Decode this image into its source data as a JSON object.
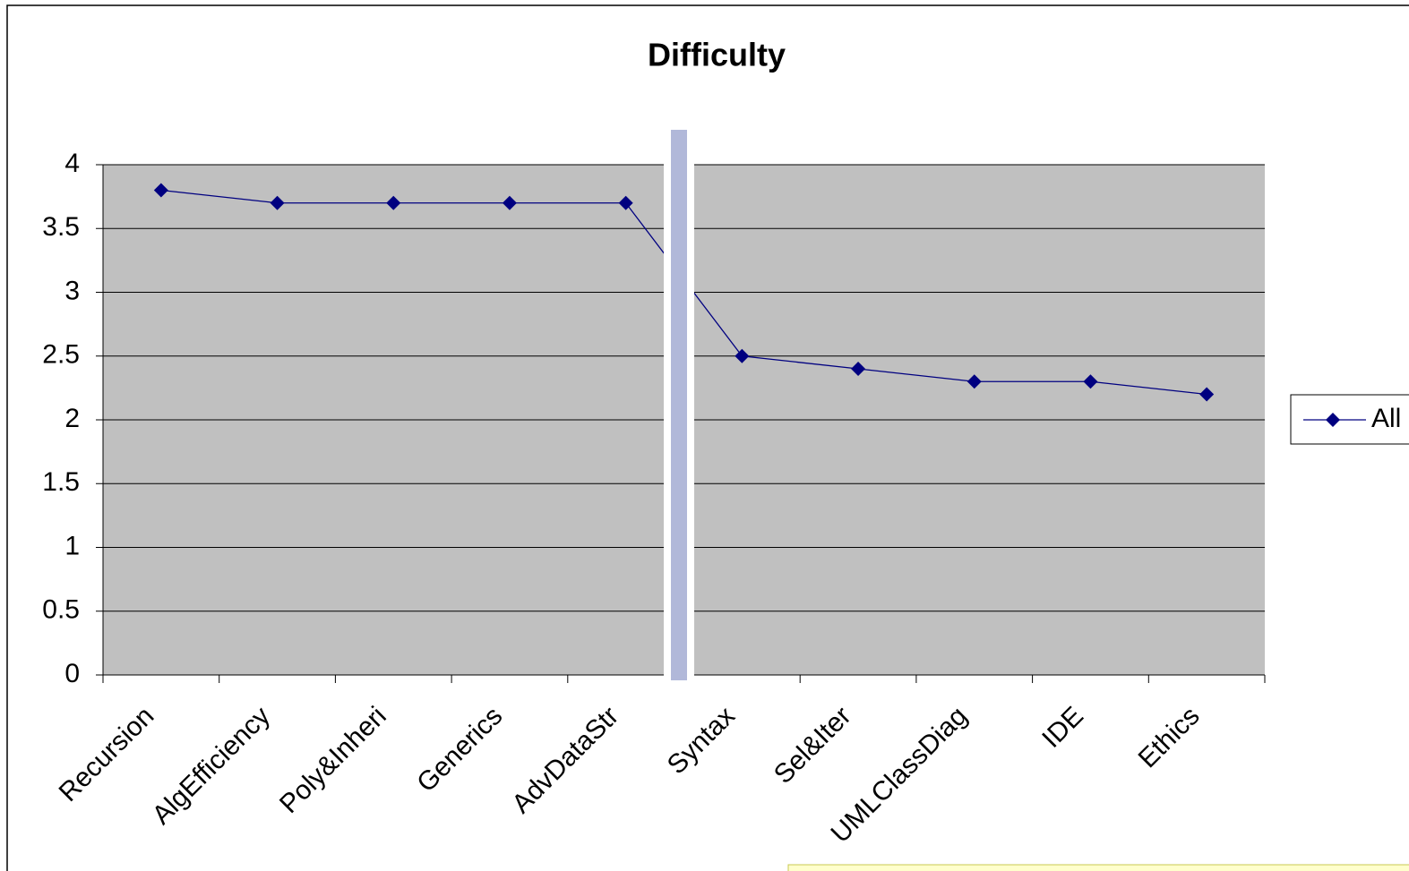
{
  "chart_data": {
    "type": "line",
    "title": "Difficulty",
    "categories": [
      "Recursion",
      "AlgEfficiency",
      "Poly&Inheri",
      "Generics",
      "AdvDataStr",
      "Syntax",
      "Sel&Iter",
      "UMLClassDiag",
      "IDE",
      "Ethics"
    ],
    "series": [
      {
        "name": "All",
        "color": "#000080",
        "values": [
          3.8,
          3.7,
          3.7,
          3.7,
          3.7,
          2.5,
          2.4,
          2.3,
          2.3,
          2.2
        ]
      }
    ],
    "ylim": [
      0,
      4
    ],
    "yticks": [
      0,
      0.5,
      1,
      1.5,
      2,
      2.5,
      3,
      3.5,
      4
    ],
    "grid": true,
    "legend": "right",
    "plot_background": "#c0c0c0"
  }
}
